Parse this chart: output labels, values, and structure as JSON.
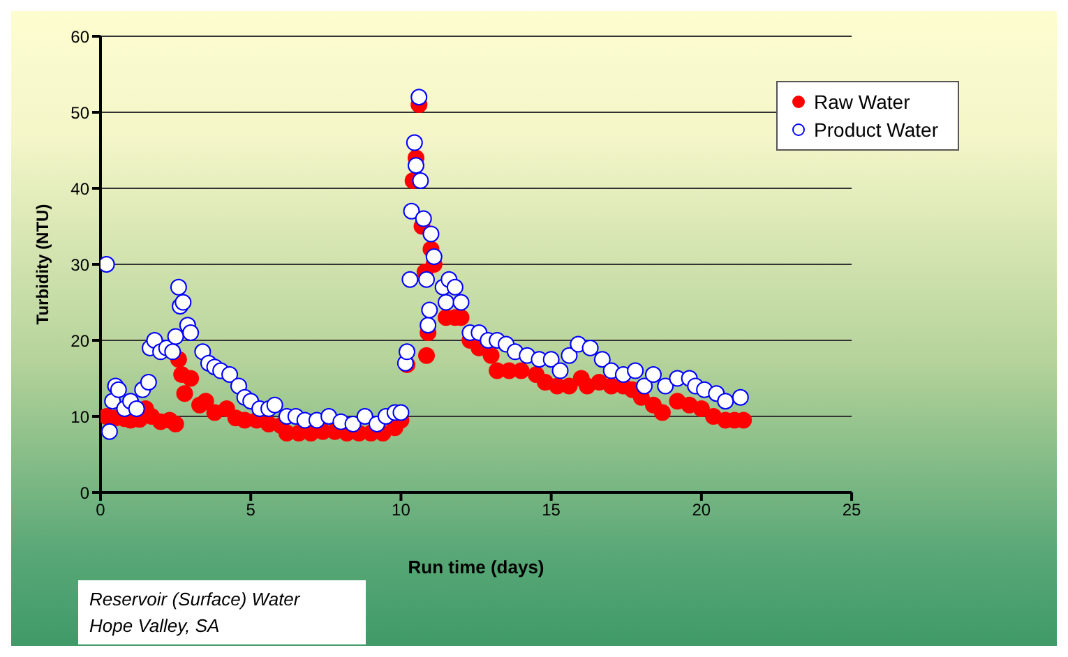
{
  "chart_data": {
    "type": "scatter",
    "xlabel": "Run time (days)",
    "ylabel": "Turbidity (NTU)",
    "xlim": [
      0,
      25
    ],
    "xticks": [
      0,
      5,
      10,
      15,
      20,
      25
    ],
    "ylim": [
      0,
      60
    ],
    "yticks": [
      0,
      10,
      20,
      30,
      40,
      50,
      60
    ],
    "grid": "y",
    "legend": "top right",
    "marker": "circle",
    "annotations": [
      "Reservoir (Surface) Water\nHope Valley, SA"
    ],
    "series": [
      {
        "name": "Raw Water",
        "color": "#ff0000",
        "x": [
          0.2,
          0.5,
          0.8,
          1.0,
          1.3,
          1.5,
          1.7,
          2.0,
          2.3,
          2.5,
          2.6,
          2.7,
          2.8,
          3.0,
          3.3,
          3.5,
          3.8,
          4.2,
          4.5,
          4.8,
          5.2,
          5.6,
          6.0,
          6.2,
          6.6,
          7.0,
          7.4,
          7.8,
          8.2,
          8.6,
          9.0,
          9.4,
          9.8,
          10.0,
          10.2,
          10.4,
          10.5,
          10.6,
          10.7,
          10.8,
          10.85,
          10.9,
          11.0,
          11.1,
          11.5,
          11.8,
          12.0,
          12.3,
          12.6,
          13.0,
          13.2,
          13.6,
          14.0,
          14.5,
          14.8,
          15.2,
          15.6,
          16.0,
          16.2,
          16.6,
          17.0,
          17.4,
          17.7,
          18.0,
          18.4,
          18.7,
          19.2,
          19.6,
          20.0,
          20.4,
          20.8,
          21.1,
          21.4
        ],
        "values": [
          10,
          9.8,
          9.7,
          9.5,
          9.6,
          11,
          10,
          9.3,
          9.5,
          9,
          17.5,
          15.5,
          13,
          15,
          11.5,
          12,
          10.5,
          11,
          9.8,
          9.5,
          9.5,
          9,
          8.8,
          7.8,
          7.8,
          7.8,
          8,
          8,
          7.8,
          7.8,
          7.8,
          7.8,
          8.5,
          9.5,
          16.8,
          41,
          44,
          51,
          35,
          29,
          18,
          21,
          32,
          30,
          23,
          23,
          23,
          20,
          19,
          18,
          16,
          16,
          16,
          15.5,
          14.5,
          14,
          14,
          15,
          14,
          14.5,
          14,
          14,
          13.5,
          12.5,
          11.5,
          10.5,
          12,
          11.5,
          11,
          10,
          9.5,
          9.5,
          9.5
        ]
      },
      {
        "name": "Product Water",
        "color": "#0000ff",
        "x": [
          0.2,
          0.3,
          0.4,
          0.5,
          0.6,
          0.8,
          1.0,
          1.2,
          1.4,
          1.6,
          1.65,
          1.8,
          2.0,
          2.2,
          2.4,
          2.5,
          2.6,
          2.65,
          2.75,
          2.9,
          3.0,
          3.4,
          3.6,
          3.8,
          4.0,
          4.3,
          4.6,
          4.8,
          5.0,
          5.3,
          5.6,
          5.8,
          6.2,
          6.5,
          6.8,
          7.2,
          7.6,
          8.0,
          8.4,
          8.8,
          9.2,
          9.5,
          9.8,
          10.0,
          10.15,
          10.2,
          10.3,
          10.35,
          10.45,
          10.5,
          10.6,
          10.65,
          10.75,
          10.85,
          10.9,
          10.95,
          11.0,
          11.1,
          11.4,
          11.5,
          11.6,
          11.8,
          12.0,
          12.3,
          12.6,
          12.9,
          13.2,
          13.5,
          13.8,
          14.2,
          14.6,
          15.0,
          15.3,
          15.6,
          15.9,
          16.3,
          16.7,
          17.0,
          17.4,
          17.8,
          18.1,
          18.4,
          18.8,
          19.2,
          19.6,
          19.8,
          20.1,
          20.5,
          20.8,
          21.3
        ],
        "values": [
          30,
          8,
          12,
          14,
          13.5,
          11,
          12,
          11,
          13.5,
          14.5,
          19,
          20,
          18.5,
          19,
          18.5,
          20.5,
          27,
          24.5,
          25,
          22,
          21,
          18.5,
          17,
          16.5,
          16,
          15.5,
          14,
          12.5,
          12,
          11,
          11,
          11.5,
          10,
          10,
          9.5,
          9.5,
          10,
          9.3,
          9,
          10,
          9,
          10,
          10.5,
          10.5,
          17,
          18.5,
          28,
          37,
          46,
          43,
          52,
          41,
          36,
          28,
          22,
          24,
          34,
          31,
          27,
          25,
          28,
          27,
          25,
          21,
          21,
          20,
          20,
          19.5,
          18.5,
          18,
          17.5,
          17.5,
          16,
          18,
          19.5,
          19,
          17.5,
          16,
          15.5,
          16,
          14,
          15.5,
          14,
          15,
          15,
          14,
          13.5,
          13,
          12,
          12.5
        ]
      }
    ]
  }
}
